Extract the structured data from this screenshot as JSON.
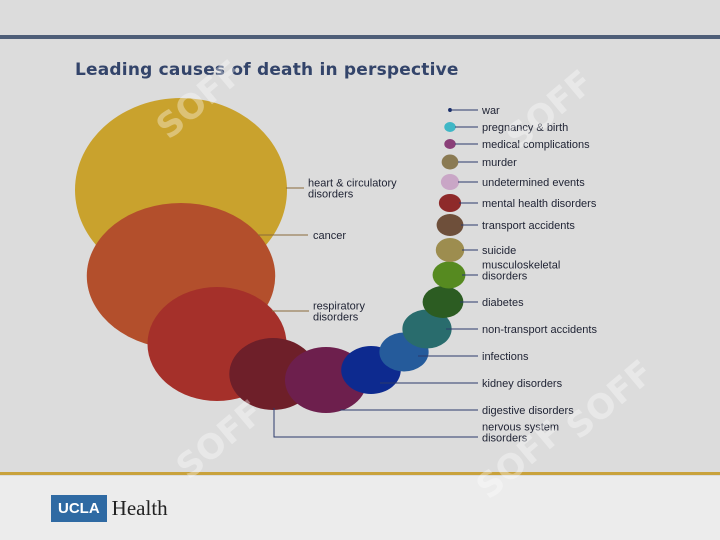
{
  "title": "Leading causes of death in perspective",
  "logo": {
    "brand": "UCLA",
    "text": "Health"
  },
  "watermark": {
    "text": "SOFF"
  },
  "chart_data": {
    "type": "bubble",
    "title": "Leading causes of death in perspective",
    "encoding": "relative circle area",
    "categories": [
      {
        "name": "heart & circulatory disorders",
        "label_lines": [
          "heart & circulatory",
          "disorders"
        ],
        "relative_size": 1.0,
        "color": "#c9a22d"
      },
      {
        "name": "cancer",
        "label_lines": [
          "cancer"
        ],
        "relative_size": 0.79,
        "color": "#b34f2c"
      },
      {
        "name": "respiratory disorders",
        "label_lines": [
          "respiratory",
          "disorders"
        ],
        "relative_size": 0.43,
        "color": "#a5302a"
      },
      {
        "name": "nervous system disorders",
        "label_lines": [
          "nervous system",
          "disorders"
        ],
        "relative_size": 0.17,
        "color": "#6e1f29"
      },
      {
        "name": "digestive disorders",
        "label_lines": [
          "digestive disorders"
        ],
        "relative_size": 0.15,
        "color": "#6d1f4d"
      },
      {
        "name": "kidney disorders",
        "label_lines": [
          "kidney disorders"
        ],
        "relative_size": 0.079,
        "color": "#0d2a8f"
      },
      {
        "name": "infections",
        "label_lines": [
          "infections"
        ],
        "relative_size": 0.054,
        "color": "#255b9b"
      },
      {
        "name": "non-transport accidents",
        "label_lines": [
          "non-transport accidents"
        ],
        "relative_size": 0.054,
        "color": "#296c6d"
      },
      {
        "name": "diabetes",
        "label_lines": [
          "diabetes"
        ],
        "relative_size": 0.037,
        "color": "#2c5c22"
      },
      {
        "name": "musculoskeletal disorders",
        "label_lines": [
          "musculoskeletal",
          "disorders"
        ],
        "relative_size": 0.024,
        "color": "#568a20"
      },
      {
        "name": "suicide",
        "label_lines": [
          "suicide"
        ],
        "relative_size": 0.018,
        "color": "#9d8d4f"
      },
      {
        "name": "transport accidents",
        "label_lines": [
          "transport accidents"
        ],
        "relative_size": 0.016,
        "color": "#6e4f3a"
      },
      {
        "name": "mental health disorders",
        "label_lines": [
          "mental health disorders"
        ],
        "relative_size": 0.011,
        "color": "#8e2a2a"
      },
      {
        "name": "undetermined events",
        "label_lines": [
          "undetermined events"
        ],
        "relative_size": 0.0074,
        "color": "#c9a6c6"
      },
      {
        "name": "murder",
        "label_lines": [
          "murder"
        ],
        "relative_size": 0.0062,
        "color": "#8a7a53"
      },
      {
        "name": "medical complications",
        "label_lines": [
          "medical complications"
        ],
        "relative_size": 0.0029,
        "color": "#8a3f78"
      },
      {
        "name": "pregnancy & birth",
        "label_lines": [
          "pregnancy & birth"
        ],
        "relative_size": 0.0029,
        "color": "#3fb7c6"
      },
      {
        "name": "war",
        "label_lines": [
          "war"
        ],
        "relative_size": 0.00033,
        "color": "#1a2e6a"
      }
    ],
    "xlabel": "",
    "ylabel": "",
    "legend": "none",
    "grid": false
  }
}
